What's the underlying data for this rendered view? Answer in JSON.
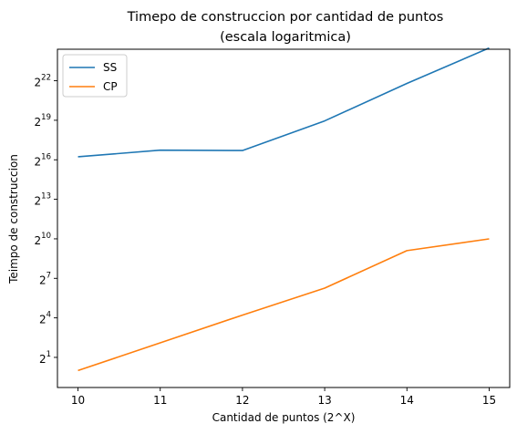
{
  "chart_data": {
    "type": "line",
    "title": "Timepo de construccion por cantidad de puntos",
    "subtitle": "(escala logaritmica)",
    "xlabel": "Cantidad de puntos (2^X)",
    "ylabel": "Teimpo de construccion",
    "yscale": "log2",
    "x": [
      10,
      11,
      12,
      13,
      14,
      15
    ],
    "xticks": [
      "10",
      "11",
      "12",
      "13",
      "14",
      "15"
    ],
    "yticks": [
      {
        "base": "2",
        "exp": "1",
        "value": 2
      },
      {
        "base": "2",
        "exp": "4",
        "value": 16
      },
      {
        "base": "2",
        "exp": "7",
        "value": 128
      },
      {
        "base": "2",
        "exp": "10",
        "value": 1024
      },
      {
        "base": "2",
        "exp": "13",
        "value": 8192
      },
      {
        "base": "2",
        "exp": "16",
        "value": 65536
      },
      {
        "base": "2",
        "exp": "19",
        "value": 524288
      },
      {
        "base": "2",
        "exp": "22",
        "value": 4194304
      }
    ],
    "xlim": [
      9.75,
      15.25
    ],
    "ylim": [
      0.41,
      22026566
    ],
    "grid": false,
    "legend": "upper-left",
    "series": [
      {
        "name": "SS",
        "color": "#1f77b4",
        "values": [
          76800,
          108600,
          106600,
          508000,
          3650000,
          23500000
        ]
      },
      {
        "name": "CP",
        "color": "#ff7f0e",
        "values": [
          1.0,
          4.3,
          18.5,
          76.5,
          551,
          1020
        ]
      }
    ]
  }
}
